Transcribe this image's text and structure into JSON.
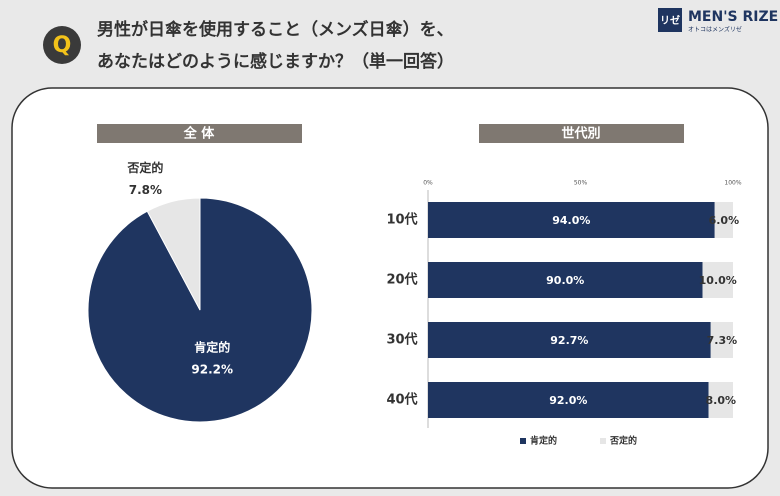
{
  "header": {
    "q_mark": "Q",
    "title_lines": [
      "男性が日傘を使用すること（メンズ日傘）を、",
      "あなたはどのように感じますか？（単一回答）"
    ]
  },
  "logo": {
    "icon": "リゼ",
    "name": "MEN'S RIZE",
    "tagline": "オトコはメンズリゼ"
  },
  "chart_data": [
    {
      "type": "pie",
      "title": "全 体",
      "categories": [
        "肯定的",
        "否定的"
      ],
      "values": [
        92.2,
        7.8
      ],
      "value_labels": [
        "92.2%",
        "7.8%"
      ],
      "colors": [
        "#1f3560",
        "#e6e6e6"
      ]
    },
    {
      "type": "bar",
      "orientation": "horizontal",
      "stacked": true,
      "title": "世代別",
      "categories": [
        "10代",
        "20代",
        "30代",
        "40代"
      ],
      "series": [
        {
          "name": "肯定的",
          "color": "#1f3560",
          "values": [
            94.0,
            90.0,
            92.7,
            92.0
          ],
          "value_labels": [
            "94.0%",
            "90.0%",
            "92.7%",
            "92.0%"
          ]
        },
        {
          "name": "否定的",
          "color": "#e6e6e6",
          "values": [
            6.0,
            10.0,
            7.3,
            8.0
          ],
          "value_labels": [
            "6.0%",
            "10.0%",
            "7.3%",
            "8.0%"
          ]
        }
      ],
      "xlim": [
        0,
        100
      ],
      "xticks": [
        {
          "value": 0,
          "label": "0%"
        },
        {
          "value": 50,
          "label": "50%"
        },
        {
          "value": 100,
          "label": "100%"
        }
      ],
      "legend": "bottom"
    }
  ]
}
